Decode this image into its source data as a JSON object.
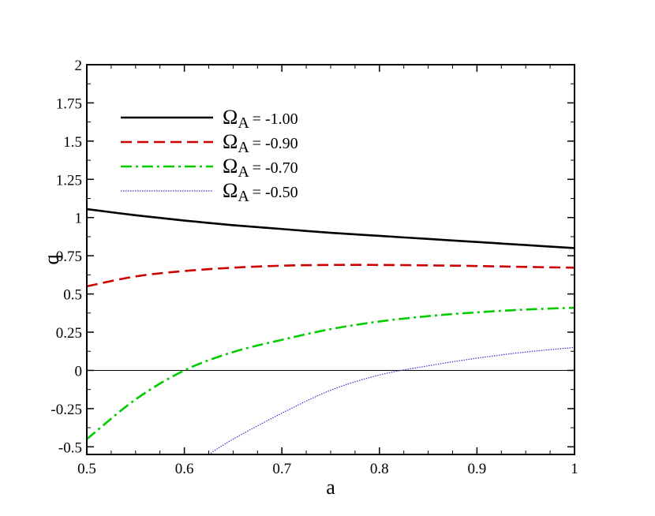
{
  "chart_data": {
    "type": "line",
    "title": "",
    "xlabel": "a",
    "ylabel": "q",
    "xlim": [
      0.5,
      1.0
    ],
    "ylim": [
      -0.55,
      2.0
    ],
    "xticks": [
      0.5,
      0.6,
      0.7,
      0.8,
      0.9,
      1.0
    ],
    "xtick_labels": [
      "0.5",
      "0.6",
      "0.7",
      "0.8",
      "0.9",
      "1"
    ],
    "yticks": [
      -0.5,
      -0.25,
      0,
      0.25,
      0.5,
      0.75,
      1,
      1.25,
      1.5,
      1.75,
      2
    ],
    "ytick_labels": [
      "-0.5",
      "-0.25",
      "0",
      "0.25",
      "0.5",
      "0.75",
      "1",
      "1.25",
      "1.5",
      "1.75",
      "2"
    ],
    "grid": false,
    "legend_position": "top-left",
    "reference_line_y": 0,
    "x": [
      0.5,
      0.55,
      0.6,
      0.65,
      0.7,
      0.75,
      0.8,
      0.85,
      0.9,
      0.95,
      1.0
    ],
    "series": [
      {
        "name_symbol": "Ω",
        "name_subscript": "A",
        "name_value": " = -1.00",
        "color": "#000000",
        "dash": "",
        "width": 2.6,
        "values": [
          1.055,
          1.015,
          0.98,
          0.95,
          0.925,
          0.9,
          0.88,
          0.86,
          0.84,
          0.82,
          0.8
        ]
      },
      {
        "name_symbol": "Ω",
        "name_subscript": "A",
        "name_value": " = -0.90",
        "color": "#cc0000",
        "dash": "14 7",
        "width": 2.6,
        "values": [
          0.55,
          0.615,
          0.65,
          0.672,
          0.685,
          0.69,
          0.69,
          0.687,
          0.683,
          0.677,
          0.672
        ]
      },
      {
        "name_symbol": "Ω",
        "name_subscript": "A",
        "name_value": " = -0.70",
        "color": "#00cc00",
        "dash": "14 5 3 5",
        "width": 2.6,
        "values": [
          -0.45,
          -0.19,
          0.0,
          0.12,
          0.2,
          0.27,
          0.32,
          0.355,
          0.38,
          0.398,
          0.41
        ]
      },
      {
        "name_symbol": "Ω",
        "name_subscript": "A",
        "name_value": " = -0.50",
        "color": "#3333cc",
        "dash": "1.5 1.5",
        "width": 1.2,
        "x": [
          0.625,
          0.65,
          0.7,
          0.75,
          0.8,
          0.85,
          0.9,
          0.95,
          1.0
        ],
        "values": [
          -0.55,
          -0.45,
          -0.28,
          -0.13,
          -0.03,
          0.03,
          0.08,
          0.12,
          0.15
        ]
      }
    ]
  }
}
